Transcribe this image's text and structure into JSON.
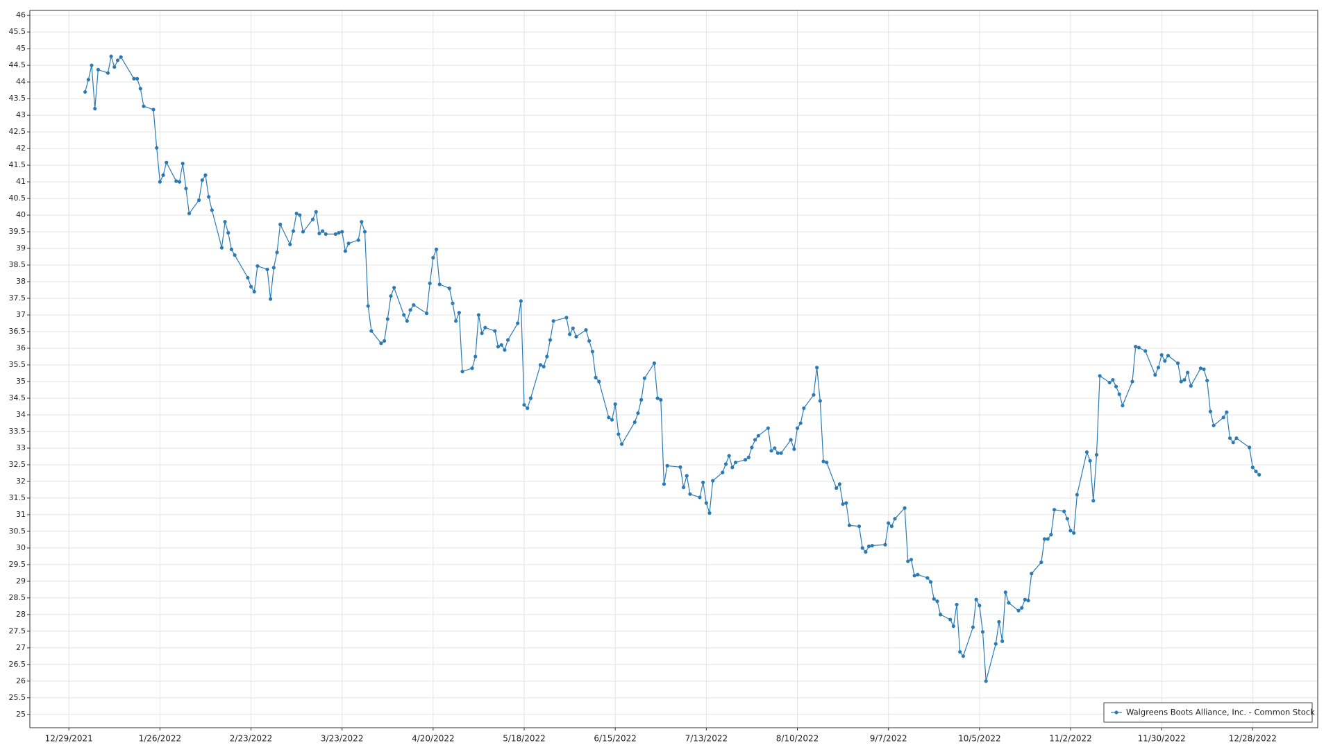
{
  "chart_data": {
    "type": "line",
    "x": [
      "1/3/2022",
      "1/4/2022",
      "1/5/2022",
      "1/6/2022",
      "1/7/2022",
      "1/10/2022",
      "1/11/2022",
      "1/12/2022",
      "1/13/2022",
      "1/14/2022",
      "1/18/2022",
      "1/19/2022",
      "1/20/2022",
      "1/21/2022",
      "1/24/2022",
      "1/25/2022",
      "1/26/2022",
      "1/27/2022",
      "1/28/2022",
      "1/31/2022",
      "2/1/2022",
      "2/2/2022",
      "2/3/2022",
      "2/4/2022",
      "2/7/2022",
      "2/8/2022",
      "2/9/2022",
      "2/10/2022",
      "2/11/2022",
      "2/14/2022",
      "2/15/2022",
      "2/16/2022",
      "2/17/2022",
      "2/18/2022",
      "2/22/2022",
      "2/23/2022",
      "2/24/2022",
      "2/25/2022",
      "2/28/2022",
      "3/1/2022",
      "3/2/2022",
      "3/3/2022",
      "3/4/2022",
      "3/7/2022",
      "3/8/2022",
      "3/9/2022",
      "3/10/2022",
      "3/11/2022",
      "3/14/2022",
      "3/15/2022",
      "3/16/2022",
      "3/17/2022",
      "3/18/2022",
      "3/21/2022",
      "3/22/2022",
      "3/23/2022",
      "3/24/2022",
      "3/25/2022",
      "3/28/2022",
      "3/29/2022",
      "3/30/2022",
      "3/31/2022",
      "4/1/2022",
      "4/4/2022",
      "4/5/2022",
      "4/6/2022",
      "4/7/2022",
      "4/8/2022",
      "4/11/2022",
      "4/12/2022",
      "4/13/2022",
      "4/14/2022",
      "4/18/2022",
      "4/19/2022",
      "4/20/2022",
      "4/21/2022",
      "4/22/2022",
      "4/25/2022",
      "4/26/2022",
      "4/27/2022",
      "4/28/2022",
      "4/29/2022",
      "5/2/2022",
      "5/3/2022",
      "5/4/2022",
      "5/5/2022",
      "5/6/2022",
      "5/9/2022",
      "5/10/2022",
      "5/11/2022",
      "5/12/2022",
      "5/13/2022",
      "5/16/2022",
      "5/17/2022",
      "5/18/2022",
      "5/19/2022",
      "5/20/2022",
      "5/23/2022",
      "5/24/2022",
      "5/25/2022",
      "5/26/2022",
      "5/27/2022",
      "5/31/2022",
      "6/1/2022",
      "6/2/2022",
      "6/3/2022",
      "6/6/2022",
      "6/7/2022",
      "6/8/2022",
      "6/9/2022",
      "6/10/2022",
      "6/13/2022",
      "6/14/2022",
      "6/15/2022",
      "6/16/2022",
      "6/17/2022",
      "6/21/2022",
      "6/22/2022",
      "6/23/2022",
      "6/24/2022",
      "6/27/2022",
      "6/28/2022",
      "6/29/2022",
      "6/30/2022",
      "7/1/2022",
      "7/5/2022",
      "7/6/2022",
      "7/7/2022",
      "7/8/2022",
      "7/11/2022",
      "7/12/2022",
      "7/13/2022",
      "7/14/2022",
      "7/15/2022",
      "7/18/2022",
      "7/19/2022",
      "7/20/2022",
      "7/21/2022",
      "7/22/2022",
      "7/25/2022",
      "7/26/2022",
      "7/27/2022",
      "7/28/2022",
      "7/29/2022",
      "8/1/2022",
      "8/2/2022",
      "8/3/2022",
      "8/4/2022",
      "8/5/2022",
      "8/8/2022",
      "8/9/2022",
      "8/10/2022",
      "8/11/2022",
      "8/12/2022",
      "8/15/2022",
      "8/16/2022",
      "8/17/2022",
      "8/18/2022",
      "8/19/2022",
      "8/22/2022",
      "8/23/2022",
      "8/24/2022",
      "8/25/2022",
      "8/26/2022",
      "8/29/2022",
      "8/30/2022",
      "8/31/2022",
      "9/1/2022",
      "9/2/2022",
      "9/6/2022",
      "9/7/2022",
      "9/8/2022",
      "9/9/2022",
      "9/12/2022",
      "9/13/2022",
      "9/14/2022",
      "9/15/2022",
      "9/16/2022",
      "9/19/2022",
      "9/20/2022",
      "9/21/2022",
      "9/22/2022",
      "9/23/2022",
      "9/26/2022",
      "9/27/2022",
      "9/28/2022",
      "9/29/2022",
      "9/30/2022",
      "10/3/2022",
      "10/4/2022",
      "10/5/2022",
      "10/6/2022",
      "10/7/2022",
      "10/10/2022",
      "10/11/2022",
      "10/12/2022",
      "10/13/2022",
      "10/14/2022",
      "10/17/2022",
      "10/18/2022",
      "10/19/2022",
      "10/20/2022",
      "10/21/2022",
      "10/24/2022",
      "10/25/2022",
      "10/26/2022",
      "10/27/2022",
      "10/28/2022",
      "10/31/2022",
      "11/1/2022",
      "11/2/2022",
      "11/3/2022",
      "11/4/2022",
      "11/7/2022",
      "11/8/2022",
      "11/9/2022",
      "11/10/2022",
      "11/11/2022",
      "11/14/2022",
      "11/15/2022",
      "11/16/2022",
      "11/17/2022",
      "11/18/2022",
      "11/21/2022",
      "11/22/2022",
      "11/23/2022",
      "11/25/2022",
      "11/28/2022",
      "11/29/2022",
      "11/30/2022",
      "12/1/2022",
      "12/2/2022",
      "12/5/2022",
      "12/6/2022",
      "12/7/2022",
      "12/8/2022",
      "12/9/2022",
      "12/12/2022",
      "12/13/2022",
      "12/14/2022",
      "12/15/2022",
      "12/16/2022",
      "12/19/2022",
      "12/20/2022",
      "12/21/2022",
      "12/22/2022",
      "12/23/2022",
      "12/27/2022",
      "12/28/2022",
      "12/29/2022",
      "12/30/2022"
    ],
    "series": [
      {
        "name": "Walgreens Boots Alliance, Inc. - Common Stock",
        "color": "#2a7ab5",
        "values": [
          43.7,
          44.07,
          44.5,
          43.2,
          44.37,
          44.27,
          44.77,
          44.45,
          44.65,
          44.75,
          44.1,
          44.1,
          43.8,
          43.27,
          43.17,
          42.02,
          41.0,
          41.2,
          41.58,
          41.02,
          41.0,
          41.55,
          40.8,
          40.05,
          40.45,
          41.05,
          41.2,
          40.55,
          40.15,
          39.02,
          39.8,
          39.47,
          38.97,
          38.8,
          38.12,
          37.85,
          37.7,
          38.47,
          38.37,
          37.48,
          38.42,
          38.88,
          39.72,
          39.12,
          39.52,
          40.05,
          40.0,
          39.5,
          39.87,
          40.1,
          39.45,
          39.52,
          39.43,
          39.43,
          39.47,
          39.5,
          38.92,
          39.15,
          39.25,
          39.8,
          39.5,
          37.27,
          36.52,
          36.15,
          36.22,
          36.88,
          37.57,
          37.82,
          37.0,
          36.82,
          37.15,
          37.3,
          37.05,
          37.95,
          38.72,
          38.97,
          37.92,
          37.8,
          37.35,
          36.82,
          37.07,
          35.3,
          35.4,
          35.75,
          37.0,
          36.45,
          36.62,
          36.52,
          36.05,
          36.1,
          35.95,
          36.25,
          36.75,
          37.42,
          34.3,
          34.2,
          34.5,
          35.5,
          35.45,
          35.75,
          36.25,
          36.82,
          36.92,
          36.42,
          36.6,
          36.35,
          36.55,
          36.22,
          35.9,
          35.12,
          35.0,
          33.92,
          33.85,
          34.32,
          33.42,
          33.12,
          33.78,
          34.05,
          34.45,
          35.1,
          35.55,
          34.5,
          34.45,
          31.92,
          32.47,
          32.43,
          31.82,
          32.17,
          31.62,
          31.52,
          31.97,
          31.35,
          31.05,
          32.02,
          32.27,
          32.52,
          32.77,
          32.42,
          32.57,
          32.65,
          32.72,
          33.02,
          33.25,
          33.37,
          33.6,
          32.92,
          33.0,
          32.85,
          32.85,
          33.25,
          32.97,
          33.6,
          33.75,
          34.2,
          34.6,
          35.42,
          34.42,
          32.6,
          32.57,
          31.8,
          31.92,
          31.32,
          31.35,
          30.68,
          30.65,
          30.0,
          29.88,
          30.05,
          30.07,
          30.1,
          30.75,
          30.65,
          30.88,
          31.2,
          29.6,
          29.65,
          29.17,
          29.2,
          29.1,
          28.98,
          28.47,
          28.4,
          28.0,
          27.85,
          27.65,
          28.3,
          26.88,
          26.75,
          27.62,
          28.45,
          28.27,
          27.48,
          26.0,
          27.12,
          27.78,
          27.2,
          28.67,
          28.35,
          28.12,
          28.2,
          28.45,
          28.42,
          29.23,
          29.57,
          30.27,
          30.27,
          30.4,
          31.15,
          31.1,
          30.88,
          30.52,
          30.45,
          31.6,
          32.88,
          32.62,
          31.42,
          32.8,
          35.17,
          34.97,
          35.05,
          34.85,
          34.62,
          34.28,
          35.0,
          36.05,
          36.02,
          35.92,
          35.2,
          35.42,
          35.8,
          35.62,
          35.78,
          35.55,
          35.0,
          35.05,
          35.27,
          34.87,
          35.4,
          35.37,
          35.03,
          34.1,
          33.68,
          33.92,
          34.08,
          33.3,
          33.17,
          33.3,
          33.02,
          32.42,
          32.3,
          32.2
        ]
      }
    ],
    "xlim": [
      "12/17/2021",
      "1/17/2023"
    ],
    "xticks": [
      "12/29/2021",
      "1/26/2022",
      "2/23/2022",
      "3/23/2022",
      "4/20/2022",
      "5/18/2022",
      "6/15/2022",
      "7/13/2022",
      "8/10/2022",
      "9/7/2022",
      "10/5/2022",
      "11/2/2022",
      "11/30/2022",
      "12/28/2022"
    ],
    "ylim": [
      24.6,
      46.15
    ],
    "yticks": [
      25,
      25.5,
      26,
      26.5,
      27,
      27.5,
      28,
      28.5,
      29,
      29.5,
      30,
      30.5,
      31,
      31.5,
      32,
      32.5,
      33,
      33.5,
      34,
      34.5,
      35,
      35.5,
      36,
      36.5,
      37,
      37.5,
      38,
      38.5,
      39,
      39.5,
      40,
      40.5,
      41,
      41.5,
      42,
      42.5,
      43,
      43.5,
      44,
      44.5,
      45,
      45.5,
      46
    ],
    "grid": true,
    "legend": "lower right"
  }
}
